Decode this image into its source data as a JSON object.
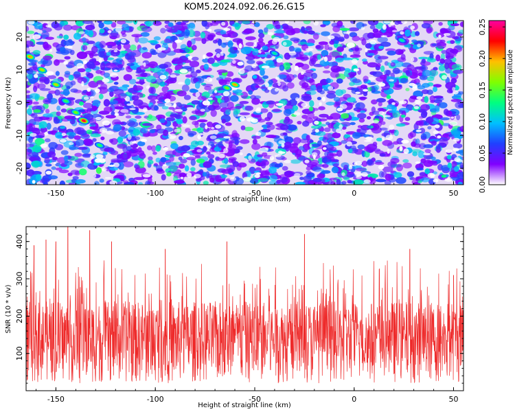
{
  "title": "KOM5.2024.092.06.26.G15",
  "chart_data": [
    {
      "type": "heatmap",
      "xlabel": "Height of straight line (km)",
      "ylabel": "Frequency (Hz)",
      "xlim": [
        -165,
        55
      ],
      "ylim": [
        -25,
        25
      ],
      "xticks": [
        -150,
        -100,
        -50,
        0,
        50
      ],
      "yticks": [
        20,
        10,
        0,
        -10,
        -20
      ],
      "colorbar": {
        "label": "Normalized spectral amplitude",
        "range": [
          0.0,
          0.26
        ],
        "ticks": [
          "0.00",
          "0.05",
          "0.10",
          "0.15",
          "0.20",
          "0.25"
        ],
        "colormap": [
          "#ffffff",
          "#8000ff",
          "#2040ff",
          "#00c0ff",
          "#00ff80",
          "#80ff00",
          "#ffc000",
          "#ff0000",
          "#ff00a0"
        ]
      },
      "features": [
        {
          "x": -163,
          "y": 14,
          "value": 0.2
        },
        {
          "x": -157,
          "y": 10,
          "value": 0.18
        },
        {
          "x": -150,
          "y": 5.5,
          "value": 0.18
        },
        {
          "x": -145,
          "y": 0.5,
          "value": 0.14
        },
        {
          "x": -140,
          "y": -3,
          "value": 0.16
        },
        {
          "x": -136,
          "y": -5.5,
          "value": 0.24
        },
        {
          "x": -128,
          "y": -13,
          "value": 0.14
        },
        {
          "x": -60,
          "y": 5.5,
          "value": 0.2
        },
        {
          "x": -64,
          "y": 4.5,
          "value": 0.16
        },
        {
          "x": -40,
          "y": 15,
          "value": 0.12
        },
        {
          "x": 24,
          "y": 19,
          "value": 0.12
        }
      ]
    },
    {
      "type": "line",
      "xlabel": "Height of straight line (km)",
      "ylabel": "SNR (10 * v/v)",
      "xlim": [
        -165,
        55
      ],
      "ylim": [
        0,
        440
      ],
      "xticks": [
        -150,
        -100,
        -50,
        0,
        50
      ],
      "yticks": [
        100,
        200,
        300,
        400
      ],
      "series": [
        {
          "color": "#ee2a2a",
          "typical_range": [
            20,
            240
          ],
          "peaks": [
            {
              "x": -161,
              "y": 390
            },
            {
              "x": -155,
              "y": 405
            },
            {
              "x": -150,
              "y": 400
            },
            {
              "x": -144,
              "y": 440
            },
            {
              "x": -133,
              "y": 430
            },
            {
              "x": -122,
              "y": 400
            },
            {
              "x": -95,
              "y": 380
            },
            {
              "x": -64,
              "y": 400
            },
            {
              "x": -25,
              "y": 420
            },
            {
              "x": 28,
              "y": 380
            },
            {
              "x": 50,
              "y": 310
            }
          ]
        }
      ]
    }
  ]
}
